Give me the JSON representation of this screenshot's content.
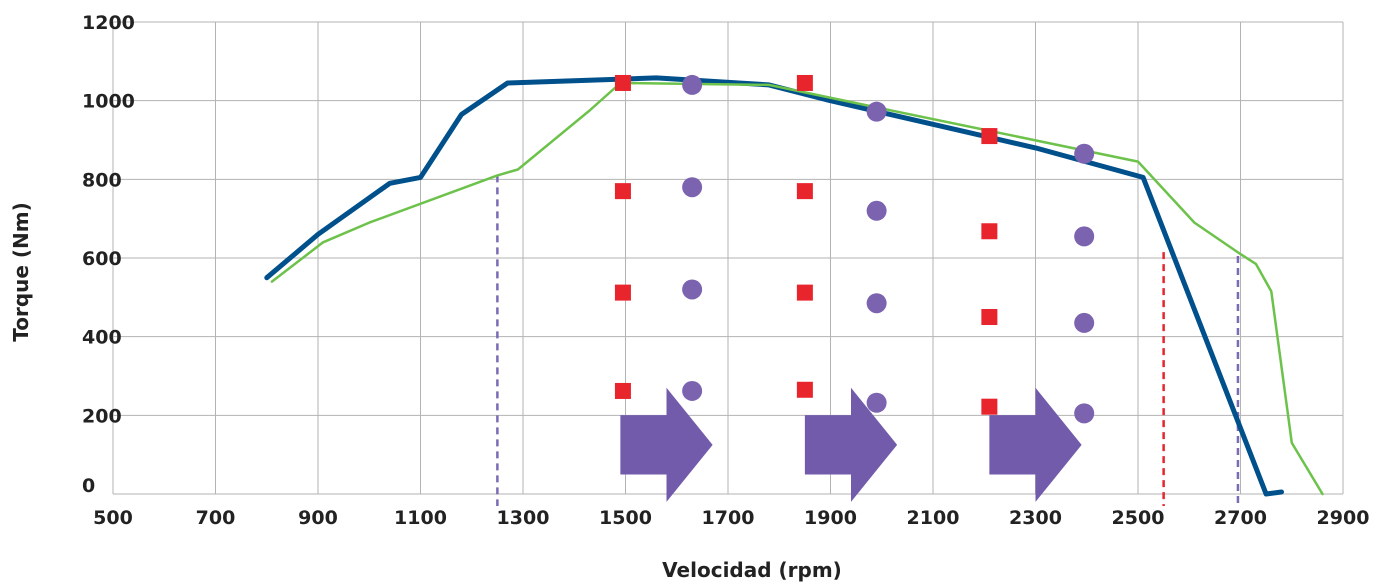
{
  "chart_data": {
    "type": "line",
    "title": "",
    "xlabel": "Velocidad (rpm)",
    "ylabel": "Torque (Nm)",
    "xlim": [
      500,
      2900
    ],
    "ylim": [
      0,
      1200
    ],
    "xticks": [
      500,
      700,
      900,
      1100,
      1300,
      1500,
      1700,
      1900,
      2100,
      2300,
      2500,
      2700,
      2900
    ],
    "yticks": [
      0,
      200,
      400,
      600,
      800,
      1000,
      1200
    ],
    "grid": true,
    "legend": "none",
    "series": [
      {
        "color": "#00508c",
        "points": [
          [
            800,
            550
          ],
          [
            900,
            660
          ],
          [
            1040,
            790
          ],
          [
            1100,
            805
          ],
          [
            1180,
            965
          ],
          [
            1270,
            1045
          ],
          [
            1500,
            1055
          ],
          [
            1560,
            1058
          ],
          [
            1780,
            1040
          ],
          [
            1900,
            1000
          ],
          [
            2100,
            940
          ],
          [
            2300,
            880
          ],
          [
            2510,
            805
          ],
          [
            2750,
            0
          ],
          [
            2780,
            5
          ]
        ]
      },
      {
        "color": "#6cc24a",
        "points": [
          [
            810,
            540
          ],
          [
            910,
            640
          ],
          [
            1000,
            690
          ],
          [
            1250,
            810
          ],
          [
            1290,
            825
          ],
          [
            1430,
            975
          ],
          [
            1490,
            1045
          ],
          [
            1780,
            1040
          ],
          [
            2000,
            980
          ],
          [
            2500,
            845
          ],
          [
            2610,
            690
          ],
          [
            2700,
            610
          ],
          [
            2730,
            585
          ],
          [
            2760,
            515
          ],
          [
            2800,
            130
          ],
          [
            2860,
            0
          ]
        ]
      }
    ],
    "vertical_lines": [
      {
        "x": 1250,
        "y_top": 810,
        "color": "#7b6bb5"
      },
      {
        "x": 2550,
        "y_top": 615,
        "color": "#e8242c"
      },
      {
        "x": 2695,
        "y_top": 605,
        "color": "#7b6bb5"
      }
    ],
    "square_markers": {
      "color": "#e8242c",
      "points": [
        [
          1495,
          1045
        ],
        [
          1495,
          770
        ],
        [
          1495,
          512
        ],
        [
          1495,
          262
        ],
        [
          1850,
          1045
        ],
        [
          1850,
          770
        ],
        [
          1850,
          512
        ],
        [
          1850,
          265
        ],
        [
          2210,
          910
        ],
        [
          2210,
          668
        ],
        [
          2210,
          450
        ],
        [
          2210,
          222
        ]
      ]
    },
    "circle_markers": {
      "color": "#7b63b0",
      "points": [
        [
          1630,
          1040
        ],
        [
          1630,
          780
        ],
        [
          1630,
          520
        ],
        [
          1630,
          262
        ],
        [
          1990,
          972
        ],
        [
          1990,
          720
        ],
        [
          1990,
          485
        ],
        [
          1990,
          232
        ],
        [
          2395,
          865
        ],
        [
          2395,
          655
        ],
        [
          2395,
          435
        ],
        [
          2395,
          205
        ]
      ]
    },
    "arrows": {
      "color": "#735bab",
      "items": [
        {
          "x0": 1490,
          "x1": 1670,
          "y_top": 270,
          "y_bottom": -20
        },
        {
          "x0": 1850,
          "x1": 2030,
          "y_top": 270,
          "y_bottom": -20
        },
        {
          "x0": 2210,
          "x1": 2390,
          "y_top": 270,
          "y_bottom": -20
        }
      ]
    }
  }
}
